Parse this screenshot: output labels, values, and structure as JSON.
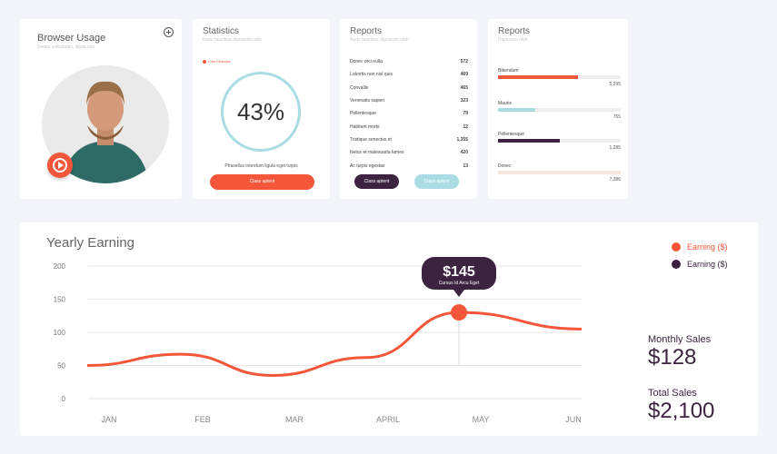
{
  "browser_usage": {
    "title": "Browser Usage",
    "subtitle": "Donec sollicitudin, ligula non"
  },
  "statistics": {
    "title": "Statistics",
    "subtitle": "Nunc faucibus dignissim nibh",
    "legend": "Chis Pharetra",
    "percent": "43%",
    "caption": "Phasellus interdum ligula eget turpis",
    "button": "Class aptent"
  },
  "reports_list": {
    "title": "Reports",
    "subtitle": "Nunc faucibus dignissim nibh",
    "rows": [
      {
        "label": "Donec orci nulla",
        "value": "572"
      },
      {
        "label": "Lobortis non nisl quis",
        "value": "469"
      },
      {
        "label": "Convallis",
        "value": "465"
      },
      {
        "label": "Venenatis sapien",
        "value": "323"
      },
      {
        "label": "Pellentesque",
        "value": "79"
      },
      {
        "label": "Habitant morbi",
        "value": "12"
      },
      {
        "label": "Tristique senectus et",
        "value": "1,355"
      },
      {
        "label": "Netus et malesuada fames",
        "value": "420"
      },
      {
        "label": "Ac turpis egestas",
        "value": "13"
      }
    ],
    "button_primary": "Class aptent",
    "button_secondary": "Class aptent"
  },
  "reports_bars": {
    "title": "Reports",
    "subtitle": "Dignissim nibh",
    "items": [
      {
        "label": "Bibendum",
        "value": "5,295",
        "fraction": 0.65,
        "color": "#f4563a"
      },
      {
        "label": "Mauris",
        "value": "765",
        "fraction": 0.3,
        "color": "#a9dde3"
      },
      {
        "label": "Pellentesque",
        "value": "1,285",
        "fraction": 0.5,
        "color": "#3c2440"
      },
      {
        "label": "Donec",
        "value": "7,386",
        "fraction": 0.0,
        "color": "#f6e6dc"
      }
    ]
  },
  "yearly": {
    "title": "Yearly Earning",
    "legend": [
      {
        "label": "Earning ($)",
        "color": "#f4563a"
      },
      {
        "label": "Earning ($)",
        "color": "#3c2440"
      }
    ],
    "tooltip_value": "$145",
    "tooltip_caption": "Cursus Id Arcu Eget",
    "monthly_label": "Monthly Sales",
    "monthly_value": "$128",
    "total_label": "Total Sales",
    "total_value": "$2,100"
  },
  "chart_data": {
    "type": "line",
    "title": "Yearly Earning",
    "x": [
      "JAN",
      "FEB",
      "MAR",
      "APRIL",
      "MAY",
      "JUN"
    ],
    "series": [
      {
        "name": "Earning ($)",
        "values": [
          50,
          67,
          35,
          62,
          130,
          105
        ]
      }
    ],
    "ylim": [
      0,
      200
    ],
    "yticks": [
      0,
      50,
      100,
      150,
      200
    ],
    "highlight": {
      "x": "MAY",
      "value": 145
    },
    "grid": true
  }
}
